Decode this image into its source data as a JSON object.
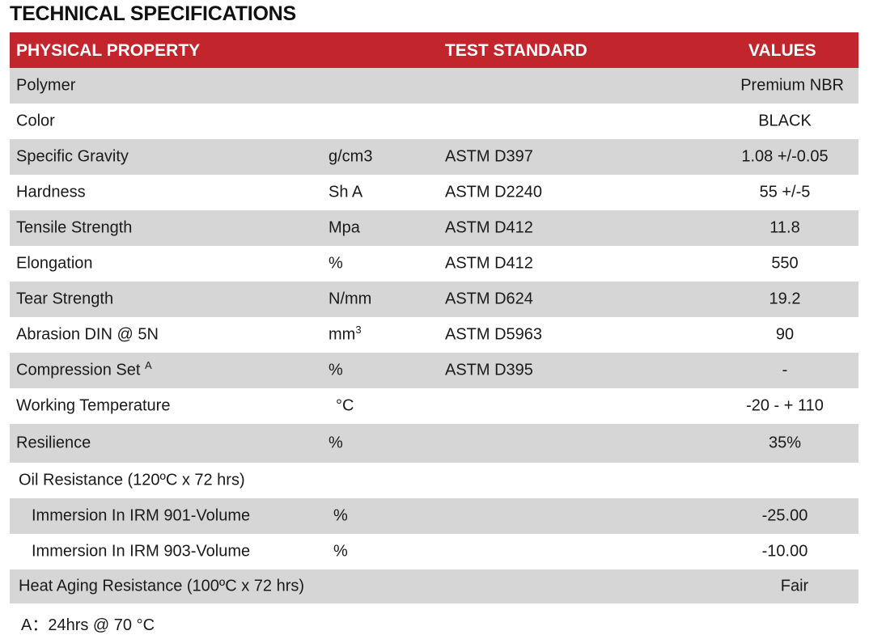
{
  "title": "TECHNICAL SPECIFICATIONS",
  "header": {
    "property": "PHYSICAL PROPERTY",
    "standard": "TEST STANDARD",
    "values": "VALUES"
  },
  "rows": [
    {
      "property": "Polymer",
      "unit": "",
      "standard": "",
      "value": "Premium NBR"
    },
    {
      "property": "Color",
      "unit": "",
      "standard": "",
      "value": "BLACK"
    },
    {
      "property": "Specific Gravity",
      "unit": "g/cm3",
      "standard": "ASTM D397",
      "value": "1.08 +/-0.05"
    },
    {
      "property": "Hardness",
      "unit": "Sh A",
      "standard": "ASTM D2240",
      "value": "55 +/-5"
    },
    {
      "property": "Tensile Strength",
      "unit": "Mpa",
      "standard": "ASTM D412",
      "value": "11.8"
    },
    {
      "property": "Elongation",
      "unit": "%",
      "standard": "ASTM D412",
      "value": "550"
    },
    {
      "property": "Tear Strength",
      "unit": "N/mm",
      "standard": "ASTM D624",
      "value": "19.2"
    },
    {
      "property": "Abrasion DIN @ 5N",
      "unit": "mm",
      "unit_sup": "3",
      "standard": "ASTM D5963",
      "value": "90"
    },
    {
      "property": "Compression Set",
      "property_sup": "A",
      "unit": "%",
      "standard": "ASTM D395",
      "value": "-"
    },
    {
      "property": "Working Temperature",
      "unit": "°C",
      "standard": "",
      "value": "-20 - + 110"
    },
    {
      "property": "Resilience",
      "unit": "%",
      "standard": "",
      "value": "35%"
    },
    {
      "property": "Oil Resistance (120ºC x 72 hrs)",
      "unit": "",
      "standard": "",
      "value": ""
    },
    {
      "property": "Immersion In IRM 901-Volume",
      "unit": "%",
      "standard": "",
      "value": "-25.00"
    },
    {
      "property": "Immersion In IRM 903-Volume",
      "unit": "%",
      "standard": "",
      "value": "-10.00"
    },
    {
      "property": "Heat Aging Resistance (100ºC x 72 hrs)",
      "unit": "",
      "standard": "",
      "value": "Fair"
    }
  ],
  "footnote": "A：24hrs @ 70 °C",
  "colors": {
    "header_bg": "#c2262c",
    "shade_bg": "#d6d6d6",
    "header_text": "#ffffff"
  }
}
